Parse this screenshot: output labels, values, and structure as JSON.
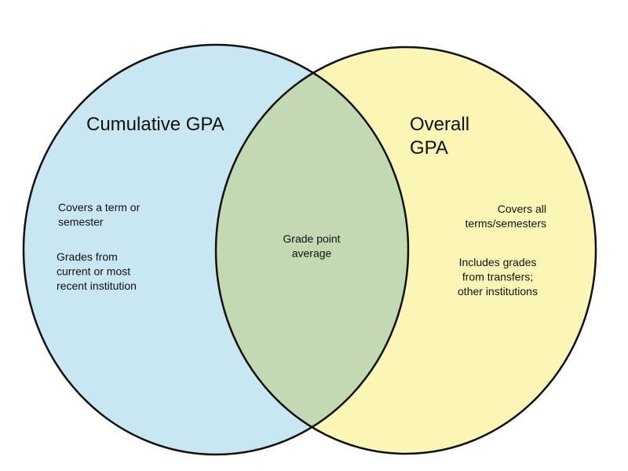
{
  "left": {
    "title": [
      "Cumulative GPA"
    ],
    "items": [
      [
        "Covers a term or",
        "semester"
      ],
      [
        "Grades from",
        "current or most",
        "recent institution"
      ]
    ]
  },
  "center": {
    "items": [
      [
        "Grade point",
        "average"
      ]
    ]
  },
  "right": {
    "title": [
      "Overall",
      "GPA"
    ],
    "items": [
      [
        "Covers all",
        "terms/semesters"
      ],
      [
        "Includes grades",
        "from transfers;",
        "other institutions"
      ]
    ]
  }
}
